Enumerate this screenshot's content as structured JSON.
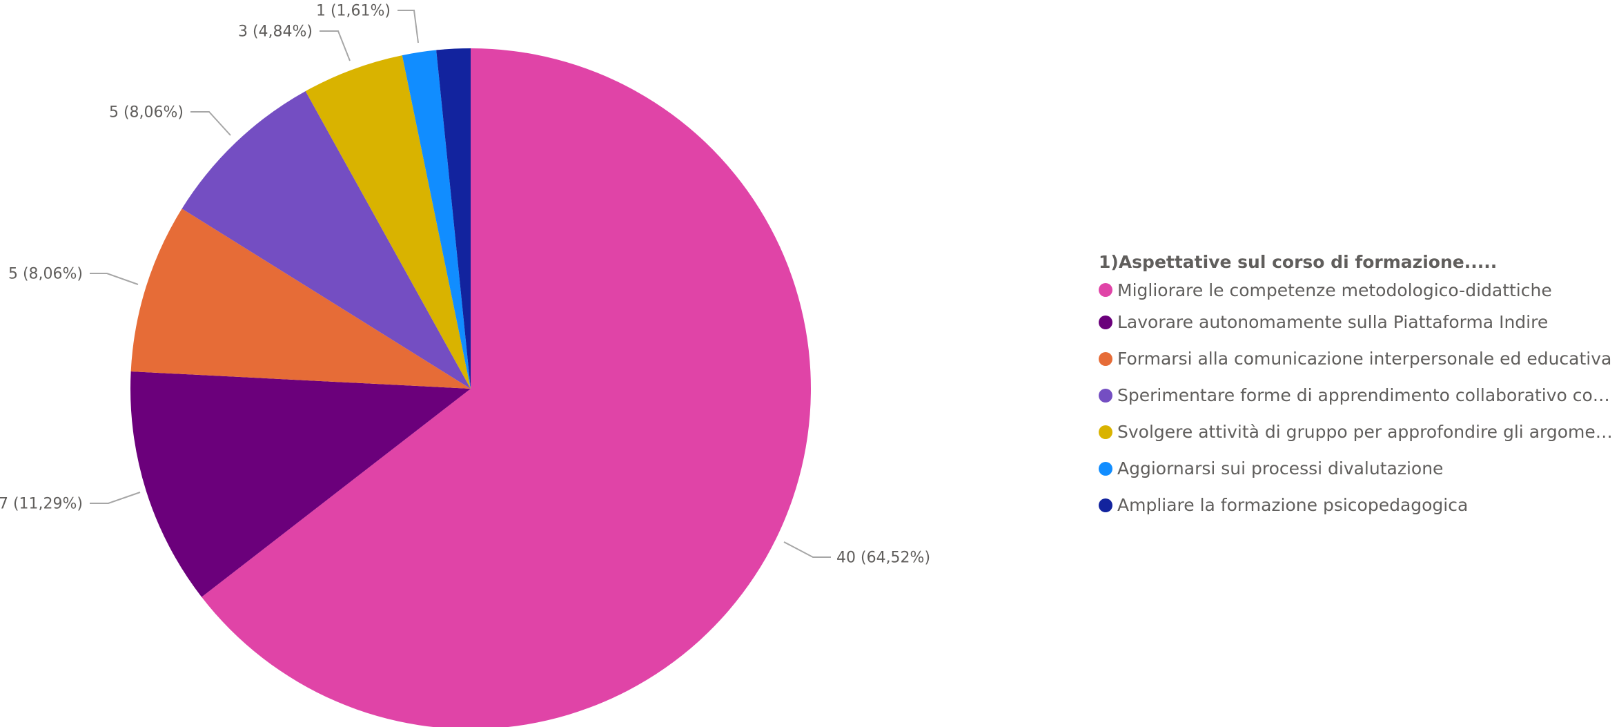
{
  "chart_data": {
    "type": "pie",
    "title": "",
    "legend_title": "1)Aspettative sul corso di formazione.....",
    "legend_position": "right",
    "slices": [
      {
        "label": "Migliorare le competenze metodologico-didattiche",
        "value": 40,
        "percent_label": "40 (64,52%)",
        "color": "#E044A7"
      },
      {
        "label": "Lavorare autonomamente sulla Piattaforma Indire",
        "value": 7,
        "percent_label": "7 (11,29%)",
        "color": "#6B007B"
      },
      {
        "label": "Formarsi alla  comunicazione interpersonale ed educativa",
        "value": 5,
        "percent_label": "5 (8,06%)",
        "color": "#E66C37"
      },
      {
        "label": "Sperimentare forme di apprendimento collaborativo con i…",
        "value": 5,
        "percent_label": "5 (8,06%)",
        "color": "#744EC2"
      },
      {
        "label": "Svolgere attività di gruppo per approfondire gli argomen…",
        "value": 3,
        "percent_label": "3 (4,84%)",
        "color": "#D9B300"
      },
      {
        "label": "Aggiornarsi sui processi divalutazione",
        "value": 1,
        "percent_label": "1 (1,61%)",
        "color": "#118DFF"
      },
      {
        "label": "Ampliare la formazione psicopedagogica",
        "value": 1,
        "percent_label": "1 (1,61%)",
        "color": "#12239E"
      }
    ]
  }
}
